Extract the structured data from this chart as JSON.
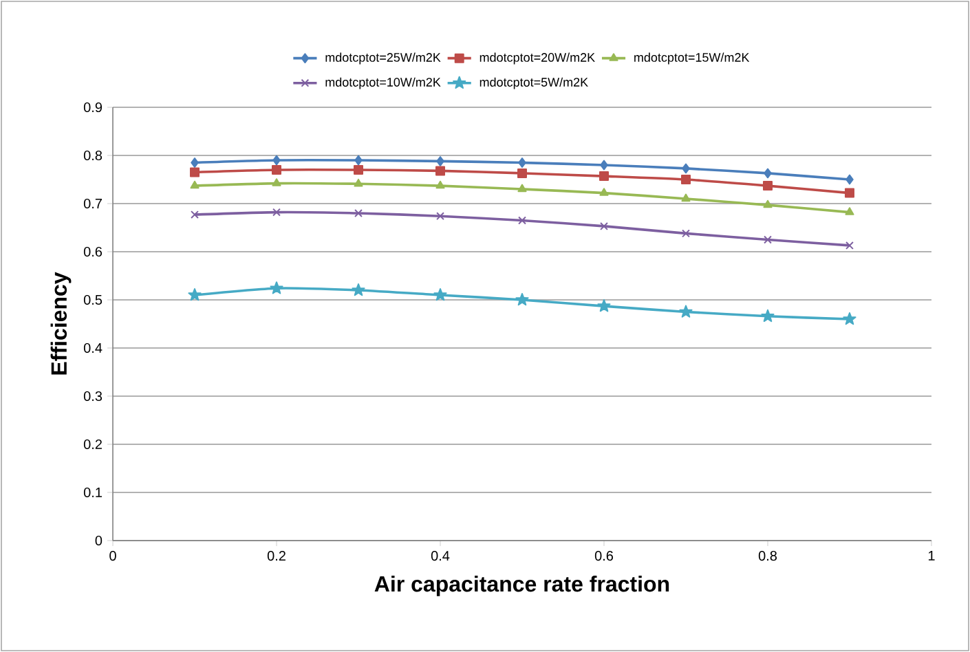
{
  "chart_data": {
    "type": "line",
    "xlabel": "Air capacitance rate fraction",
    "ylabel": "Efficiency",
    "x": [
      0.1,
      0.2,
      0.3,
      0.4,
      0.5,
      0.6,
      0.7,
      0.8,
      0.9
    ],
    "series": [
      {
        "name": "mdotcptot=25W/m2K",
        "color": "#4a7ebb",
        "marker": "diamond",
        "values": [
          0.785,
          0.79,
          0.79,
          0.788,
          0.785,
          0.78,
          0.773,
          0.763,
          0.75
        ]
      },
      {
        "name": "mdotcptot=20W/m2K",
        "color": "#be4b48",
        "marker": "square",
        "values": [
          0.765,
          0.77,
          0.77,
          0.768,
          0.763,
          0.757,
          0.75,
          0.737,
          0.722
        ]
      },
      {
        "name": "mdotcptot=15W/m2K",
        "color": "#98b954",
        "marker": "triangle",
        "values": [
          0.737,
          0.742,
          0.741,
          0.737,
          0.73,
          0.722,
          0.71,
          0.697,
          0.682
        ]
      },
      {
        "name": "mdotcptot=10W/m2K",
        "color": "#7d5fa0",
        "marker": "cross",
        "values": [
          0.677,
          0.682,
          0.68,
          0.674,
          0.665,
          0.653,
          0.638,
          0.625,
          0.613
        ]
      },
      {
        "name": "mdotcptot=5W/m2K",
        "color": "#46aac5",
        "marker": "star",
        "values": [
          0.51,
          0.524,
          0.52,
          0.51,
          0.5,
          0.487,
          0.475,
          0.466,
          0.46
        ]
      }
    ],
    "xlim": [
      0,
      1
    ],
    "xticks": [
      0,
      0.2,
      0.4,
      0.6,
      0.8,
      1
    ],
    "ylim": [
      0,
      0.9
    ],
    "yticks": [
      0,
      0.1,
      0.2,
      0.3,
      0.4,
      0.5,
      0.6,
      0.7,
      0.8,
      0.9
    ],
    "grid": "y",
    "legend": "top"
  }
}
